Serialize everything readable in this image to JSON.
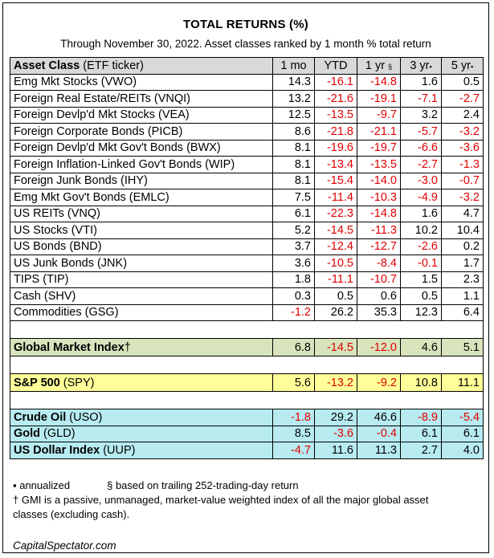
{
  "title": "TOTAL RETURNS (%)",
  "subtitle": "Through November 30, 2022. Asset classes ranked by 1 month % total return",
  "header": {
    "asset_class_bold": "Asset Class",
    "asset_class_rest": " (ETF ticker)",
    "col_1mo": "1 mo",
    "col_ytd": "YTD",
    "col_1yr": "1 yr",
    "col_1yr_mark": "§",
    "col_3yr": "3 yr",
    "col_3yr_mark": "▪",
    "col_5yr": "5 yr",
    "col_5yr_mark": "▪"
  },
  "gmi": {
    "name": "Global Market Index",
    "mark": "†",
    "values": [
      "6.8",
      "-14.5",
      "-12.0",
      "4.6",
      "5.1"
    ]
  },
  "spy": {
    "name_bold": "S&P 500",
    "name_rest": " (SPY)",
    "values": [
      "5.6",
      "-13.2",
      "-9.2",
      "10.8",
      "11.1"
    ]
  },
  "commodities_block": [
    {
      "name_bold": "Crude Oil",
      "name_rest": " (USO)",
      "values": [
        "-1.8",
        "29.2",
        "46.6",
        "-8.9",
        "-5.4"
      ]
    },
    {
      "name_bold": "Gold",
      "name_rest": " (GLD)",
      "values": [
        "8.5",
        "-3.6",
        "-0.4",
        "6.1",
        "6.1"
      ]
    },
    {
      "name_bold": "US Dollar Index",
      "name_rest": " (UUP)",
      "values": [
        "-4.7",
        "11.6",
        "11.3",
        "2.7",
        "4.0"
      ]
    }
  ],
  "footnotes": {
    "annualized": "▪ annualized",
    "trailing": "§ based on trailing 252-trading-day return",
    "gmi_line1": "† GMI is a passive, unmanaged, market-value weighted index of all the major global asset",
    "gmi_line2": "classes (excluding cash)."
  },
  "source": "CapitalSpectator.com",
  "colors": {
    "negative": "#e00000",
    "header_bg": "#d9d9d9",
    "gmi_bg": "#d8e4bc",
    "spy_bg": "#ffff99",
    "commodity_bg": "#b7ebf0"
  },
  "chart_data": {
    "type": "table",
    "title": "TOTAL RETURNS (%)",
    "subtitle": "Through November 30, 2022. Asset classes ranked by 1 month % total return",
    "columns": [
      "Asset Class (ETF ticker)",
      "1 mo",
      "YTD",
      "1 yr",
      "3 yr",
      "5 yr"
    ],
    "rows": [
      {
        "name": "Emg Mkt Stocks (VWO)",
        "values": [
          "14.3",
          "-16.1",
          "-14.8",
          "1.6",
          "0.5"
        ]
      },
      {
        "name": "Foreign Real Estate/REITs (VNQI)",
        "values": [
          "13.2",
          "-21.6",
          "-19.1",
          "-7.1",
          "-2.7"
        ]
      },
      {
        "name": "Foreign Devlp'd Mkt Stocks (VEA)",
        "values": [
          "12.5",
          "-13.5",
          "-9.7",
          "3.2",
          "2.4"
        ]
      },
      {
        "name": "Foreign Corporate Bonds (PICB)",
        "values": [
          "8.6",
          "-21.8",
          "-21.1",
          "-5.7",
          "-3.2"
        ]
      },
      {
        "name": "Foreign Devlp'd Mkt Gov't Bonds (BWX)",
        "values": [
          "8.1",
          "-19.6",
          "-19.7",
          "-6.6",
          "-3.6"
        ]
      },
      {
        "name": "Foreign Inflation-Linked Gov't Bonds (WIP)",
        "values": [
          "8.1",
          "-13.4",
          "-13.5",
          "-2.7",
          "-1.3"
        ]
      },
      {
        "name": "Foreign Junk Bonds (IHY)",
        "values": [
          "8.1",
          "-15.4",
          "-14.0",
          "-3.0",
          "-0.7"
        ]
      },
      {
        "name": "Emg Mkt Gov't Bonds (EMLC)",
        "values": [
          "7.5",
          "-11.4",
          "-10.3",
          "-4.9",
          "-3.2"
        ]
      },
      {
        "name": "US REITs (VNQ)",
        "values": [
          "6.1",
          "-22.3",
          "-14.8",
          "1.6",
          "4.7"
        ]
      },
      {
        "name": "US Stocks (VTI)",
        "values": [
          "5.2",
          "-14.5",
          "-11.3",
          "10.2",
          "10.4"
        ]
      },
      {
        "name": "US Bonds (BND)",
        "values": [
          "3.7",
          "-12.4",
          "-12.7",
          "-2.6",
          "0.2"
        ]
      },
      {
        "name": "US Junk Bonds (JNK)",
        "values": [
          "3.6",
          "-10.5",
          "-8.4",
          "-0.1",
          "1.7"
        ]
      },
      {
        "name": "TIPS (TIP)",
        "values": [
          "1.8",
          "-11.1",
          "-10.7",
          "1.5",
          "2.3"
        ]
      },
      {
        "name": "Cash (SHV)",
        "values": [
          "0.3",
          "0.5",
          "0.6",
          "0.5",
          "1.1"
        ]
      },
      {
        "name": "Commodities (GSG)",
        "values": [
          "-1.2",
          "26.2",
          "35.3",
          "12.3",
          "6.4"
        ]
      }
    ]
  }
}
